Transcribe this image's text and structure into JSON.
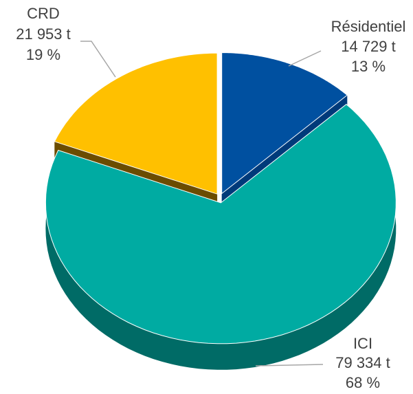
{
  "chart_data": {
    "type": "pie",
    "categories": [
      "Résidentiel",
      "ICI",
      "CRD"
    ],
    "values": [
      14729,
      79334,
      21953
    ],
    "value_labels": [
      "14 729 t",
      "79 334 t",
      "21 953 t"
    ],
    "percents": [
      13,
      68,
      19
    ],
    "percent_labels": [
      "13 %",
      "68 %",
      "19 %"
    ],
    "colors": [
      "#0050a0",
      "#00aba2",
      "#ffc000"
    ],
    "side_colors": [
      "#003a7a",
      "#006b66",
      "#6b4c00"
    ]
  }
}
